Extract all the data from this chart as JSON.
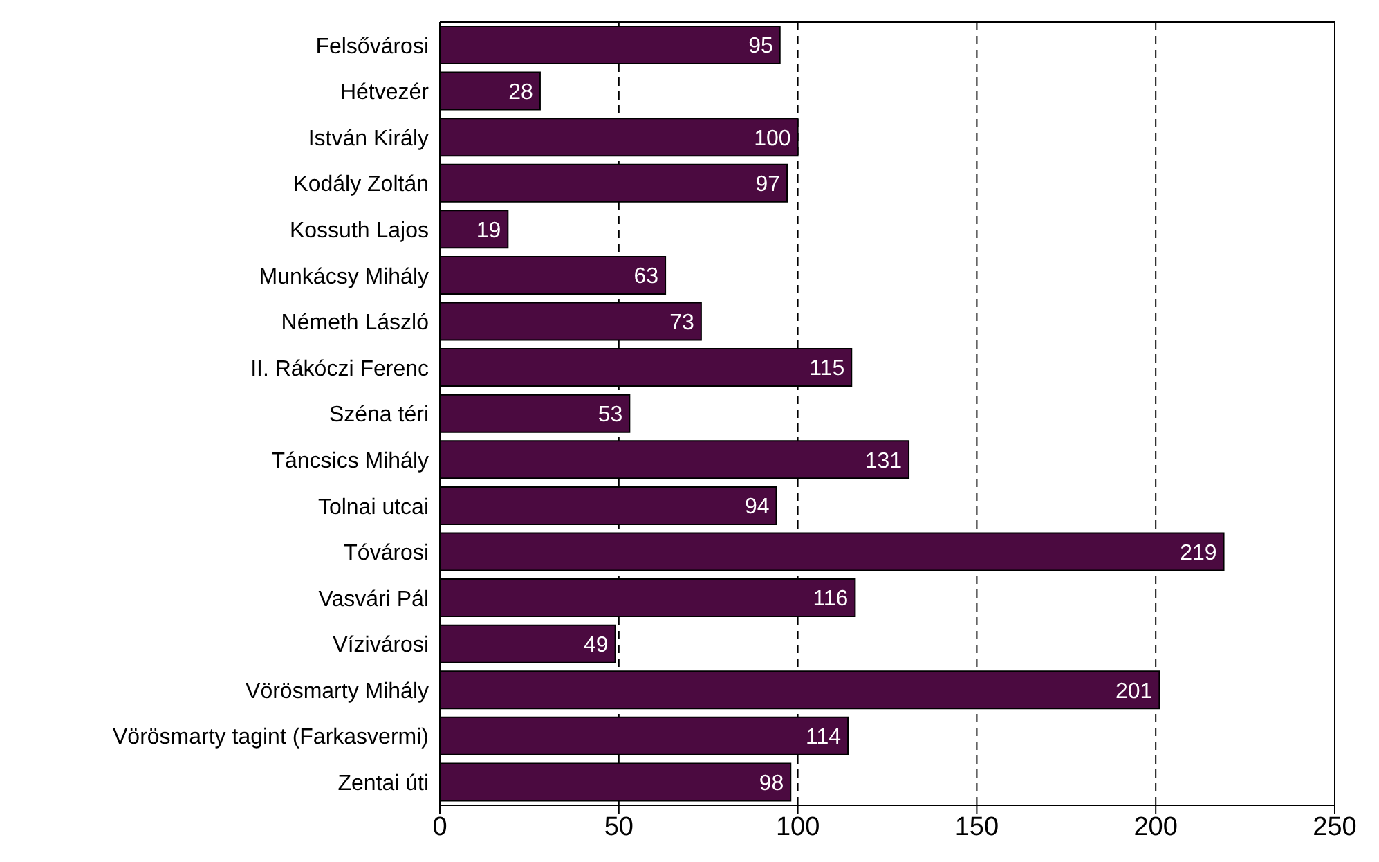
{
  "chart_data": {
    "type": "bar",
    "orientation": "horizontal",
    "categories": [
      "Felsővárosi",
      "Hétvezér",
      "István Király",
      "Kodály Zoltán",
      "Kossuth Lajos",
      "Munkácsy Mihály",
      "Németh László",
      "II. Rákóczi Ferenc",
      "Széna téri",
      "Táncsics Mihály",
      "Tolnai utcai",
      "Tóvárosi",
      "Vasvári Pál",
      "Vízivárosi",
      "Vörösmarty Mihály",
      "Vörösmarty tagint (Farkasvermi)",
      "Zentai úti"
    ],
    "values": [
      95,
      28,
      100,
      97,
      19,
      63,
      73,
      115,
      53,
      131,
      94,
      219,
      116,
      49,
      201,
      114,
      98
    ],
    "color": "#4b0a40",
    "xlim": [
      0,
      250
    ],
    "xticks": [
      0,
      50,
      100,
      150,
      200,
      250
    ],
    "grid": "x",
    "data_labels": true
  }
}
